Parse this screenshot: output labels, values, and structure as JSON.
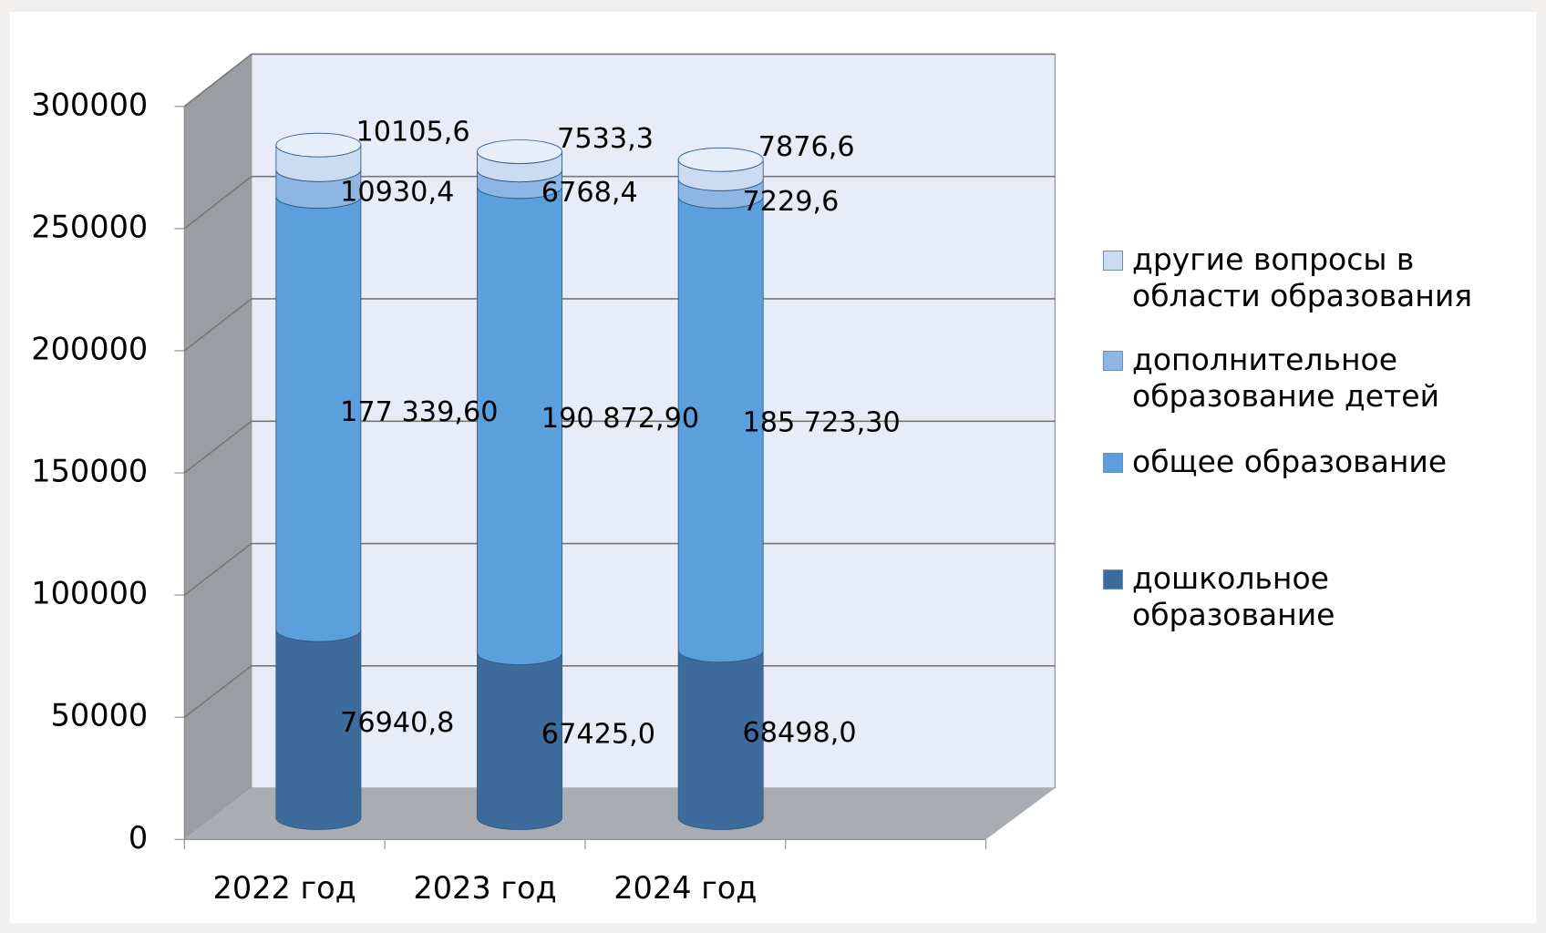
{
  "chart_data": {
    "type": "bar3d_stacked",
    "categories": [
      "2022 год",
      "2023 год",
      "2024 год"
    ],
    "series": [
      {
        "name": "дошкольное образование",
        "color": "#3d6c9c",
        "values": [
          76940.8,
          67425.0,
          68498.0
        ],
        "value_labels": [
          "76940,8",
          "67425,0",
          "68498,0"
        ]
      },
      {
        "name": "общее образование",
        "color": "#5b9fdd",
        "values": [
          177339.6,
          190872.9,
          185723.3
        ],
        "value_labels": [
          "177 339,60",
          "190 872,90",
          "185 723,30"
        ]
      },
      {
        "name": "дополнительное образование детей",
        "color": "#8db6e4",
        "values": [
          10930.4,
          6768.4,
          7229.6
        ],
        "value_labels": [
          "10930,4",
          "6768,4",
          "7229,6"
        ]
      },
      {
        "name": "другие вопросы в области образования",
        "color": "#cbdcf2",
        "values": [
          10105.6,
          7533.3,
          7876.6
        ],
        "value_labels": [
          "10105,6",
          "7533,3",
          "7876,6"
        ]
      }
    ],
    "ylim": [
      0,
      300000
    ],
    "yticks": [
      0,
      50000,
      100000,
      150000,
      200000,
      250000,
      300000
    ],
    "grid": true,
    "legend": "right"
  }
}
